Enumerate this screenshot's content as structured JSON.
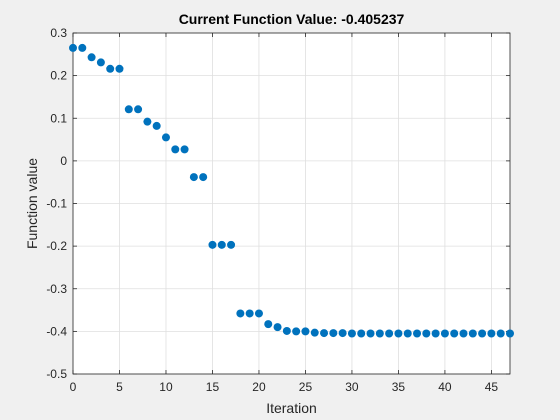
{
  "window": {
    "background": "#f0f0f0"
  },
  "chart_data": {
    "type": "scatter",
    "title": "Current Function Value: -0.405237",
    "xlabel": "Iteration",
    "ylabel": "Function value",
    "xlim": [
      0,
      47
    ],
    "ylim": [
      -0.5,
      0.3
    ],
    "xticks": [
      0,
      5,
      10,
      15,
      20,
      25,
      30,
      35,
      40,
      45
    ],
    "yticks": [
      -0.5,
      -0.4,
      -0.3,
      -0.2,
      -0.1,
      0,
      0.1,
      0.2,
      0.3
    ],
    "grid": true,
    "marker_color": "#0072bd",
    "series": [
      {
        "x": [
          0,
          1,
          2,
          3,
          4,
          5,
          6,
          7,
          8,
          9,
          10,
          11,
          12,
          13,
          14,
          15,
          16,
          17,
          18,
          19,
          20,
          21,
          22,
          23,
          24,
          25,
          26,
          27,
          28,
          29,
          30,
          31,
          32,
          33,
          34,
          35,
          36,
          37,
          38,
          39,
          40,
          41,
          42,
          43,
          44,
          45,
          46,
          47
        ],
        "y": [
          0.265,
          0.265,
          0.243,
          0.231,
          0.216,
          0.216,
          0.121,
          0.121,
          0.092,
          0.082,
          0.055,
          0.027,
          0.027,
          -0.038,
          -0.038,
          -0.197,
          -0.197,
          -0.197,
          -0.358,
          -0.358,
          -0.358,
          -0.383,
          -0.39,
          -0.399,
          -0.4,
          -0.4,
          -0.403,
          -0.404,
          -0.404,
          -0.404,
          -0.405,
          -0.405,
          -0.405,
          -0.405,
          -0.405,
          -0.405,
          -0.405,
          -0.405,
          -0.405,
          -0.405,
          -0.405,
          -0.405,
          -0.405,
          -0.405,
          -0.405,
          -0.405,
          -0.405,
          -0.405
        ]
      }
    ]
  }
}
